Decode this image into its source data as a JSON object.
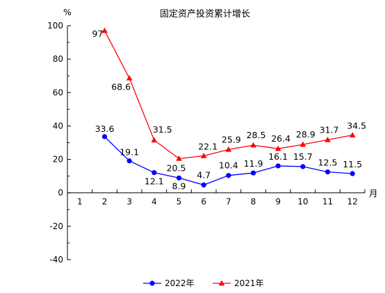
{
  "chart_data": {
    "type": "line",
    "title": "固定资产投资累计增长",
    "ylabel": "%",
    "xlabel": "月",
    "ylim": [
      -40,
      100
    ],
    "yticks": [
      -40,
      -20,
      0,
      20,
      40,
      60,
      80,
      100
    ],
    "categories": [
      "1",
      "2",
      "3",
      "4",
      "5",
      "6",
      "7",
      "8",
      "9",
      "10",
      "11",
      "12"
    ],
    "grid": false,
    "legend_position": "bottom",
    "series": [
      {
        "name": "2022年",
        "color": "#0000ff",
        "marker": "circle",
        "values": [
          null,
          33.6,
          19.1,
          12.1,
          8.9,
          4.7,
          10.4,
          11.9,
          16.1,
          15.7,
          12.5,
          11.5
        ],
        "labels": [
          "",
          "33.6",
          "19.1",
          "12.1",
          "8.9",
          "4.7",
          "10.4",
          "11.9",
          "16.1",
          "15.7",
          "12.5",
          "11.5"
        ]
      },
      {
        "name": "2021年",
        "color": "#ff0000",
        "marker": "triangle",
        "values": [
          null,
          97,
          68.6,
          31.5,
          20.5,
          22.1,
          25.9,
          28.5,
          26.4,
          28.9,
          31.7,
          34.5
        ],
        "labels": [
          "",
          "97",
          "68.6",
          "31.5",
          "20.5",
          "22.1",
          "25.9",
          "28.5",
          "26.4",
          "28.9",
          "31.7",
          "34.5"
        ]
      }
    ]
  }
}
